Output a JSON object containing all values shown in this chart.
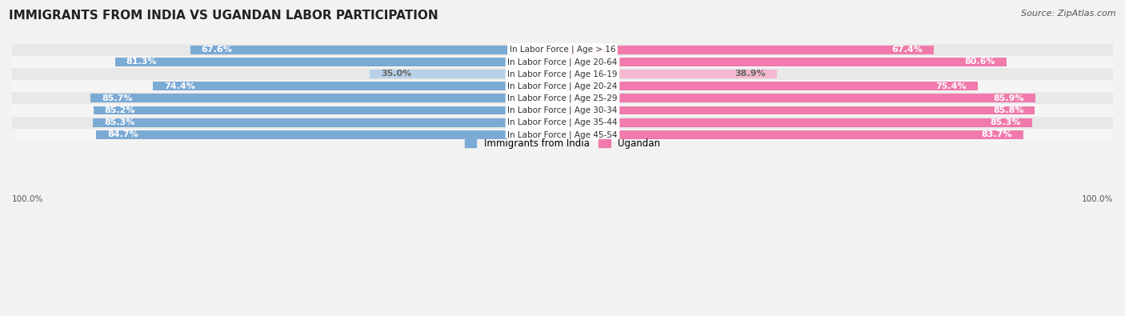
{
  "title": "IMMIGRANTS FROM INDIA VS UGANDAN LABOR PARTICIPATION",
  "source": "Source: ZipAtlas.com",
  "categories": [
    "In Labor Force | Age > 16",
    "In Labor Force | Age 20-64",
    "In Labor Force | Age 16-19",
    "In Labor Force | Age 20-24",
    "In Labor Force | Age 25-29",
    "In Labor Force | Age 30-34",
    "In Labor Force | Age 35-44",
    "In Labor Force | Age 45-54"
  ],
  "india_values": [
    67.6,
    81.3,
    35.0,
    74.4,
    85.7,
    85.2,
    85.3,
    84.7
  ],
  "ugandan_values": [
    67.4,
    80.6,
    38.9,
    75.4,
    85.9,
    85.8,
    85.3,
    83.7
  ],
  "india_color_full": "#7baad4",
  "india_color_light": "#b8d0e8",
  "ugandan_color_full": "#f07aab",
  "ugandan_color_light": "#f5b8d0",
  "background_color": "#f2f2f2",
  "row_colors": [
    "#e8e8e8",
    "#f5f5f5"
  ],
  "legend_india": "Immigrants from India",
  "legend_ugandan": "Ugandan",
  "title_fontsize": 11,
  "source_fontsize": 8,
  "bar_label_fontsize": 8,
  "category_fontsize": 7.5,
  "legend_fontsize": 8.5
}
